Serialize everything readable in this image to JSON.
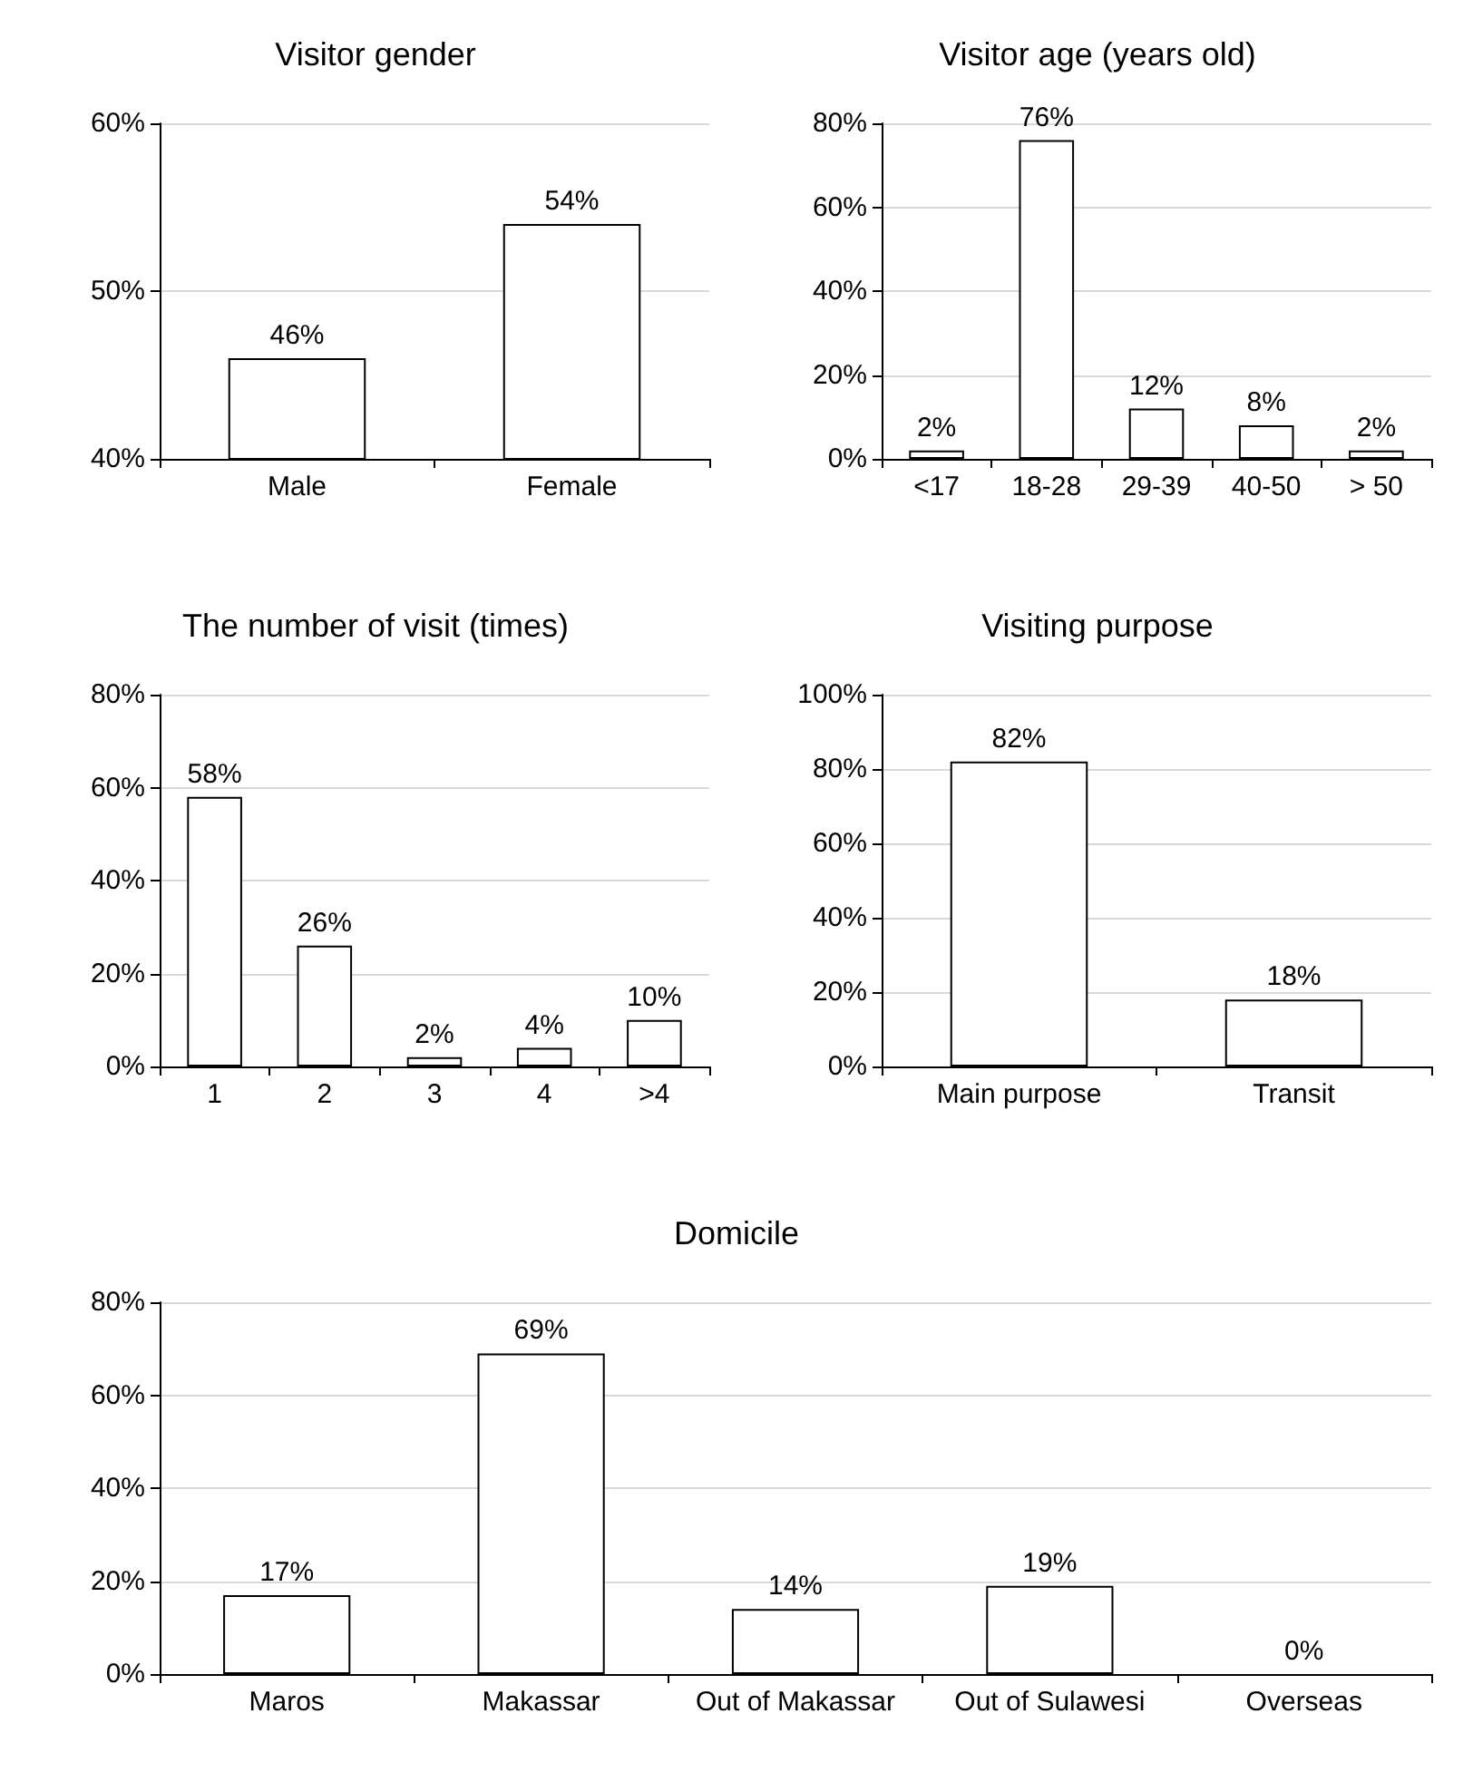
{
  "chart_data": [
    {
      "type": "bar",
      "title": "Visitor gender",
      "categories": [
        "Male",
        "Female"
      ],
      "values": [
        46,
        54
      ],
      "value_labels": [
        "46%",
        "54%"
      ],
      "color": "#ffffff",
      "ylim": [
        40,
        60
      ],
      "yticks": [
        {
          "value": 40,
          "label": "40%"
        },
        {
          "value": 50,
          "label": "50%"
        },
        {
          "value": 60,
          "label": "60%"
        }
      ],
      "grid": "y"
    },
    {
      "type": "bar",
      "title": "Visitor age (years old)",
      "categories": [
        "<17",
        "18-28",
        "29-39",
        "40-50",
        "> 50"
      ],
      "values": [
        2,
        76,
        12,
        8,
        2
      ],
      "value_labels": [
        "2%",
        "76%",
        "12%",
        "8%",
        "2%"
      ],
      "color": "#ffffff",
      "ylim": [
        0,
        80
      ],
      "yticks": [
        {
          "value": 0,
          "label": "0%"
        },
        {
          "value": 20,
          "label": "20%"
        },
        {
          "value": 40,
          "label": "40%"
        },
        {
          "value": 60,
          "label": "60%"
        },
        {
          "value": 80,
          "label": "80%"
        }
      ],
      "grid": "y"
    },
    {
      "type": "bar",
      "title": "The number of visit (times)",
      "categories": [
        "1",
        "2",
        "3",
        "4",
        ">4"
      ],
      "values": [
        58,
        26,
        2,
        4,
        10
      ],
      "value_labels": [
        "58%",
        "26%",
        "2%",
        "4%",
        "10%"
      ],
      "color": "#ffffff",
      "ylim": [
        0,
        80
      ],
      "yticks": [
        {
          "value": 0,
          "label": "0%"
        },
        {
          "value": 20,
          "label": "20%"
        },
        {
          "value": 40,
          "label": "40%"
        },
        {
          "value": 60,
          "label": "60%"
        },
        {
          "value": 80,
          "label": "80%"
        }
      ],
      "grid": "y"
    },
    {
      "type": "bar",
      "title": "Visiting purpose",
      "categories": [
        "Main purpose",
        "Transit"
      ],
      "values": [
        82,
        18
      ],
      "value_labels": [
        "82%",
        "18%"
      ],
      "color": "#ffffff",
      "ylim": [
        0,
        100
      ],
      "yticks": [
        {
          "value": 0,
          "label": "0%"
        },
        {
          "value": 20,
          "label": "20%"
        },
        {
          "value": 40,
          "label": "40%"
        },
        {
          "value": 60,
          "label": "60%"
        },
        {
          "value": 80,
          "label": "80%"
        },
        {
          "value": 100,
          "label": "100%"
        }
      ],
      "grid": "y"
    },
    {
      "type": "bar",
      "title": "Domicile",
      "categories": [
        "Maros",
        "Makassar",
        "Out of Makassar",
        "Out of Sulawesi",
        "Overseas"
      ],
      "values": [
        17,
        69,
        14,
        19,
        0
      ],
      "value_labels": [
        "17%",
        "69%",
        "14%",
        "19%",
        "0%"
      ],
      "color": "#ffffff",
      "ylim": [
        0,
        80
      ],
      "yticks": [
        {
          "value": 0,
          "label": "0%"
        },
        {
          "value": 20,
          "label": "20%"
        },
        {
          "value": 40,
          "label": "40%"
        },
        {
          "value": 60,
          "label": "60%"
        },
        {
          "value": 80,
          "label": "80%"
        }
      ],
      "grid": "y"
    }
  ]
}
